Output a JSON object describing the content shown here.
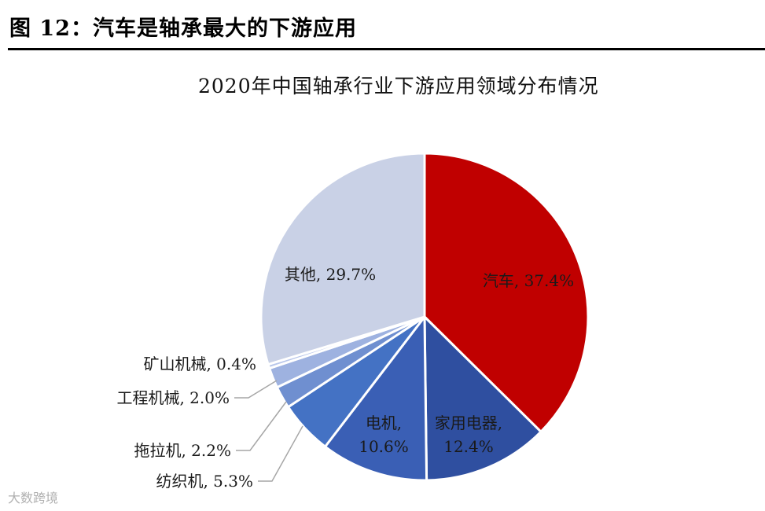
{
  "heading": "图 12：汽车是轴承最大的下游应用",
  "watermark": "大数跨境",
  "chart_data": {
    "type": "pie",
    "title": "2020年中国轴承行业下游应用领域分布情况",
    "slices": [
      {
        "name": "汽车",
        "value": 37.4,
        "label": "汽车, 37.4%",
        "color": "#c00000"
      },
      {
        "name": "家用电器",
        "value": 12.4,
        "label": "家用电器, 12.4%",
        "color": "#2f4fa0"
      },
      {
        "name": "电机",
        "value": 10.6,
        "label": "电机, 10.6%",
        "color": "#3a5fb5"
      },
      {
        "name": "纺织机",
        "value": 5.3,
        "label": "纺织机, 5.3%",
        "color": "#4472c4"
      },
      {
        "name": "拖拉机",
        "value": 2.2,
        "label": "拖拉机, 2.2%",
        "color": "#6f8fd0"
      },
      {
        "name": "工程机械",
        "value": 2.0,
        "label": "工程机械, 2.0%",
        "color": "#9eb2e0"
      },
      {
        "name": "矿山机械",
        "value": 0.4,
        "label": "矿山机械, 0.4%",
        "color": "#b8c6ea"
      },
      {
        "name": "其他",
        "value": 29.7,
        "label": "其他, 29.7%",
        "color": "#c9d1e6"
      }
    ]
  }
}
